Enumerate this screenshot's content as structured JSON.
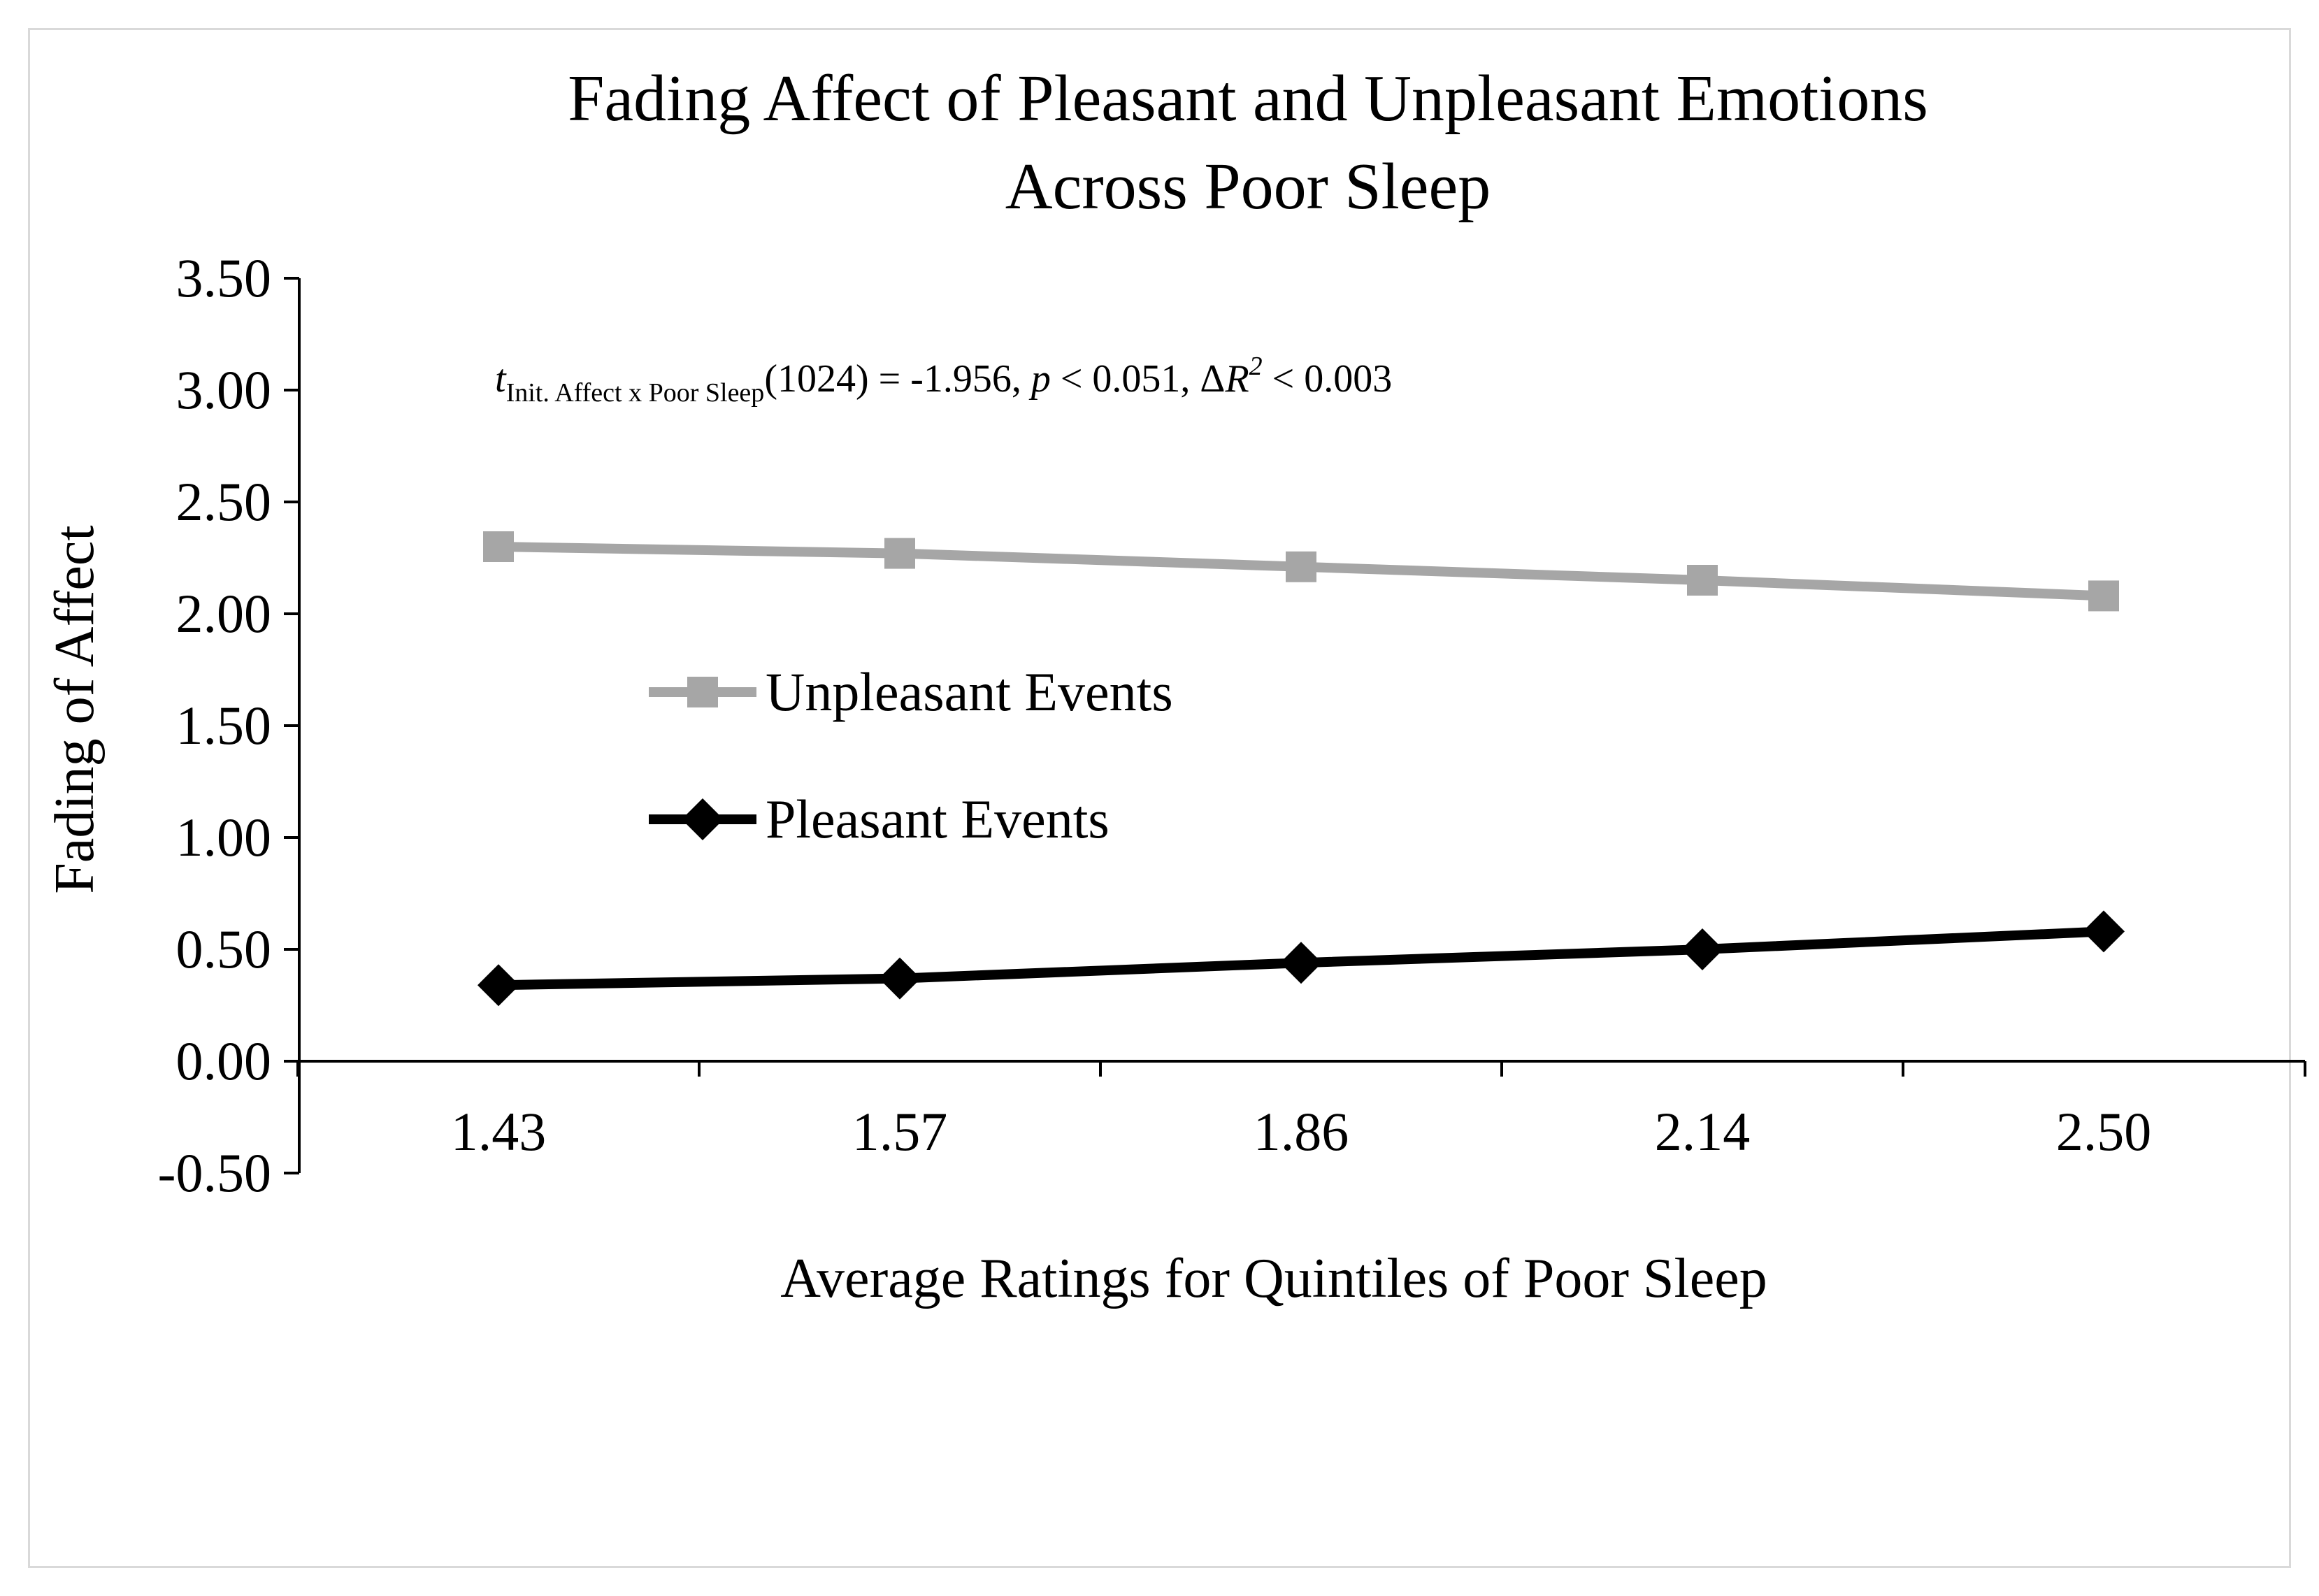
{
  "chart_data": {
    "type": "line",
    "title_lines": [
      "Fading Affect of Pleasant and Unpleasant Emotions",
      "Across Poor Sleep"
    ],
    "xlabel": "Average Ratings for Quintiles of Poor Sleep",
    "ylabel": "Fading of Affect",
    "categories": [
      "1.43",
      "1.57",
      "1.86",
      "2.14",
      "2.50"
    ],
    "ylim": [
      -0.5,
      3.5
    ],
    "ytick_step": 0.5,
    "yticks": [
      "3.50",
      "3.00",
      "2.50",
      "2.00",
      "1.50",
      "1.00",
      "0.50",
      "0.00",
      "-0.50"
    ],
    "grid": false,
    "legend_position": "center-left",
    "series": [
      {
        "name": "Unpleasant Events",
        "values": [
          2.3,
          2.27,
          2.21,
          2.15,
          2.08
        ],
        "color": "#a6a6a6",
        "marker": "square"
      },
      {
        "name": "Pleasant Events",
        "values": [
          0.34,
          0.37,
          0.44,
          0.5,
          0.58
        ],
        "color": "#000000",
        "marker": "diamond"
      }
    ],
    "annotation": {
      "t": "t",
      "subscript": "Init. Affect x Poor Sleep",
      "df": "(1024) = -1.956, ",
      "p": "p",
      "p_text": " < 0.051, Δ",
      "r": "R",
      "sup": "2",
      "tail": " < 0.003"
    }
  }
}
